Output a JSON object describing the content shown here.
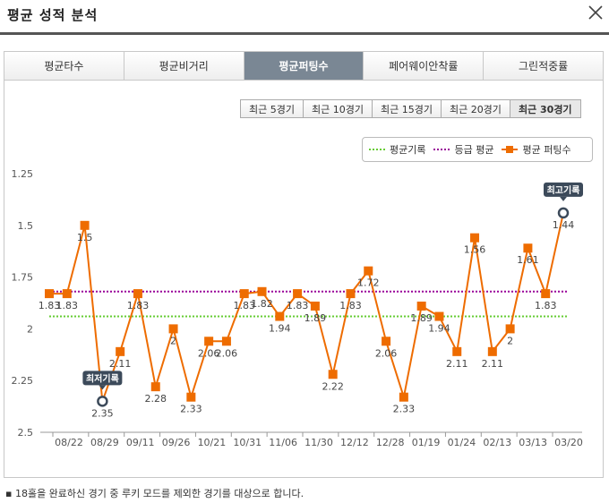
{
  "window": {
    "title": "평균 성적 분석"
  },
  "tabs": [
    {
      "label": "평균타수"
    },
    {
      "label": "평균비거리"
    },
    {
      "label": "평균퍼팅수"
    },
    {
      "label": "페어웨이안착률"
    },
    {
      "label": "그린적중률"
    }
  ],
  "active_tab": 2,
  "periods": [
    {
      "label": "최근 5경기"
    },
    {
      "label": "최근 10경기"
    },
    {
      "label": "최근 15경기"
    },
    {
      "label": "최근 20경기"
    },
    {
      "label": "최근 30경기"
    }
  ],
  "active_period": 4,
  "footnote": "▪ 18홀을 완료하신 경기 중 루키 모드를 제외한 경기를 대상으로 합니다.",
  "colors": {
    "accent": "#ee6c00",
    "avg_line": "#66cc33",
    "grade_line": "#990099",
    "marker_label_bg": "#3c4a5a"
  },
  "chart_data": {
    "type": "line",
    "legend": [
      "평균기록",
      "등급 평균",
      "평균 퍼팅수"
    ],
    "legend_position": "top-right",
    "y_ticks": [
      "1.25",
      "1.5",
      "1.75",
      "2",
      "2.25",
      "2.5"
    ],
    "ylim": [
      1.25,
      2.5
    ],
    "y_inverted": true,
    "x_tick_labels": [
      "08/22",
      "08/29",
      "09/11",
      "09/26",
      "10/21",
      "10/31",
      "11/06",
      "11/30",
      "12/12",
      "12/28",
      "01/19",
      "01/24",
      "02/13",
      "03/13",
      "03/20"
    ],
    "avg_line_value": 1.94,
    "grade_avg_value": 1.82,
    "series": [
      {
        "name": "평균 퍼팅수",
        "values": [
          1.83,
          1.83,
          1.5,
          2.35,
          2.11,
          1.83,
          2.28,
          2,
          2.33,
          2.06,
          2.06,
          1.83,
          1.82,
          1.94,
          1.83,
          1.89,
          2.22,
          1.83,
          1.72,
          2.06,
          2.33,
          1.89,
          1.94,
          2.11,
          1.56,
          2.11,
          2,
          1.61,
          1.83,
          1.44
        ],
        "labels": [
          "1.83",
          "1.83",
          "1.5",
          "2.35",
          "2.11",
          "1.83",
          "2.28",
          "2",
          "2.33",
          "2.06",
          "2.06",
          "1.83",
          "1.82",
          "1.94",
          "1.83",
          "1.89",
          "2.22",
          "1.83",
          "1.72",
          "2.06",
          "2.33",
          "1.89",
          "1.94",
          "2.11",
          "1.56",
          "2.11",
          "2",
          "1.61",
          "1.83",
          "1.44"
        ]
      }
    ],
    "annotations": [
      {
        "text": "최저기록",
        "index": 3
      },
      {
        "text": "최고기록",
        "index": 29
      }
    ],
    "grid": false
  }
}
